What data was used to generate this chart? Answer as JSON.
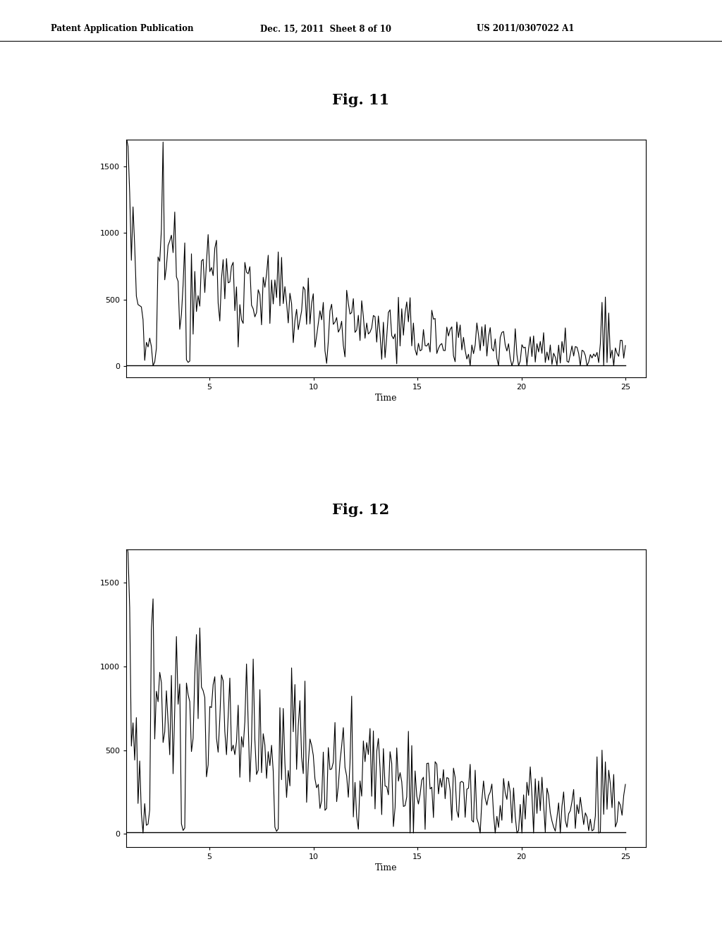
{
  "header_left": "Patent Application Publication",
  "header_mid": "Dec. 15, 2011  Sheet 8 of 10",
  "header_right": "US 2011/0307022 A1",
  "fig11_title": "Fig. 11",
  "fig12_title": "Fig. 12",
  "xlabel": "Time",
  "yticks1": [
    0,
    500,
    1000,
    1500
  ],
  "yticks2": [
    0,
    500,
    1000,
    1500
  ],
  "xticks": [
    5,
    10,
    15,
    20,
    25
  ],
  "xlim": [
    1,
    26
  ],
  "ylim1": [
    -80,
    1700
  ],
  "ylim2": [
    -80,
    1700
  ],
  "background_color": "#ffffff",
  "line_color": "#000000",
  "line_width": 0.8,
  "n_points": 300
}
